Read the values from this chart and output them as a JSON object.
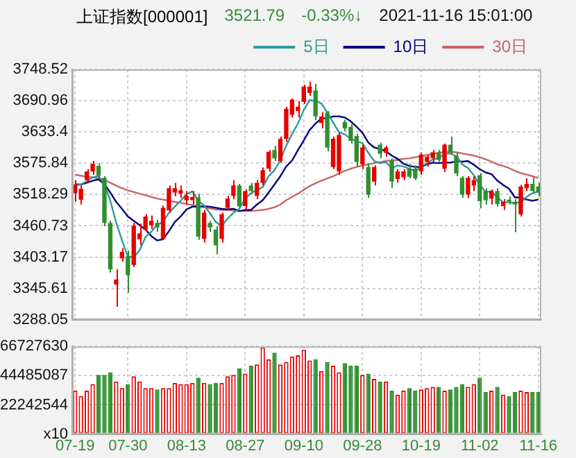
{
  "chart_data": [
    {
      "type": "candlestick",
      "title": "上证指数[000001]",
      "annotations": [
        "3521.79",
        "-0.33%↓",
        "2021-11-16 15:01:00"
      ],
      "categories": [
        null,
        null,
        null,
        null,
        null,
        null,
        null,
        null,
        null,
        null,
        null,
        null,
        null,
        null,
        null,
        null,
        null,
        null,
        null,
        null,
        null,
        null,
        null,
        null,
        null,
        null,
        null,
        null,
        null,
        null,
        null,
        null,
        null,
        null,
        null,
        null,
        null,
        null,
        null,
        null,
        null,
        null,
        null,
        null,
        null,
        null,
        null,
        null,
        null,
        null,
        null,
        null,
        null,
        null,
        null,
        null,
        null,
        null,
        null,
        null,
        null,
        null,
        null,
        null,
        null,
        null,
        null,
        null,
        null,
        null,
        null,
        null,
        null,
        null,
        null,
        null,
        null,
        null,
        null,
        null
      ],
      "ohlc": [
        [
          3521,
          3545,
          3505,
          3537
        ],
        [
          3509,
          3535,
          3500,
          3529
        ],
        [
          3545,
          3565,
          3540,
          3561
        ],
        [
          3561,
          3580,
          3555,
          3575
        ],
        [
          3571,
          3576,
          3548,
          3553
        ],
        [
          3549,
          3552,
          3460,
          3466
        ],
        [
          3466,
          3470,
          3375,
          3381
        ],
        [
          3353,
          3381,
          3312,
          3362
        ],
        [
          3401,
          3420,
          3395,
          3413
        ],
        [
          3405,
          3415,
          3338,
          3370
        ],
        [
          3389,
          3466,
          3385,
          3461
        ],
        [
          3436,
          3465,
          3425,
          3447
        ],
        [
          3454,
          3482,
          3450,
          3478
        ],
        [
          3462,
          3480,
          3455,
          3470
        ],
        [
          3466,
          3472,
          3450,
          3458
        ],
        [
          3437,
          3498,
          3435,
          3494
        ],
        [
          3489,
          3535,
          3485,
          3530
        ],
        [
          3522,
          3540,
          3515,
          3530
        ],
        [
          3520,
          3535,
          3512,
          3526
        ],
        [
          3508,
          3525,
          3500,
          3516
        ],
        [
          3508,
          3525,
          3500,
          3514
        ],
        [
          3513,
          3520,
          3435,
          3441
        ],
        [
          3437,
          3490,
          3430,
          3485
        ],
        [
          3466,
          3470,
          3450,
          3458
        ],
        [
          3454,
          3460,
          3408,
          3425
        ],
        [
          3437,
          3485,
          3430,
          3482
        ],
        [
          3494,
          3516,
          3490,
          3511
        ],
        [
          3516,
          3545,
          3510,
          3535
        ],
        [
          3535,
          3538,
          3495,
          3497
        ],
        [
          3497,
          3528,
          3490,
          3525
        ],
        [
          3535,
          3540,
          3520,
          3525
        ],
        [
          3516,
          3545,
          3510,
          3540
        ],
        [
          3540,
          3568,
          3535,
          3563
        ],
        [
          3566,
          3600,
          3560,
          3597
        ],
        [
          3600,
          3608,
          3580,
          3585
        ],
        [
          3580,
          3625,
          3577,
          3621
        ],
        [
          3621,
          3680,
          3615,
          3676
        ],
        [
          3665,
          3695,
          3660,
          3693
        ],
        [
          3672,
          3690,
          3660,
          3680
        ],
        [
          3689,
          3720,
          3685,
          3717
        ],
        [
          3705,
          3726,
          3700,
          3717
        ],
        [
          3710,
          3722,
          3655,
          3662
        ],
        [
          3650,
          3670,
          3640,
          3662
        ],
        [
          3669,
          3672,
          3598,
          3605
        ],
        [
          3569,
          3625,
          3565,
          3621
        ],
        [
          3561,
          3632,
          3555,
          3628
        ],
        [
          3652,
          3656,
          3635,
          3640
        ],
        [
          3643,
          3648,
          3612,
          3617
        ],
        [
          3626,
          3630,
          3570,
          3578
        ],
        [
          3574,
          3610,
          3565,
          3605
        ],
        [
          3569,
          3575,
          3512,
          3518
        ],
        [
          3542,
          3572,
          3535,
          3569
        ],
        [
          3610,
          3614,
          3585,
          3593
        ],
        [
          3595,
          3608,
          3588,
          3605
        ],
        [
          3581,
          3585,
          3530,
          3542
        ],
        [
          3547,
          3565,
          3540,
          3561
        ],
        [
          3550,
          3565,
          3545,
          3561
        ],
        [
          3566,
          3575,
          3548,
          3551
        ],
        [
          3566,
          3572,
          3545,
          3548
        ],
        [
          3561,
          3596,
          3555,
          3592
        ],
        [
          3578,
          3592,
          3570,
          3588
        ],
        [
          3585,
          3600,
          3578,
          3596
        ],
        [
          3596,
          3600,
          3578,
          3582
        ],
        [
          3566,
          3612,
          3560,
          3610
        ],
        [
          3610,
          3625,
          3592,
          3595
        ],
        [
          3590,
          3594,
          3552,
          3557
        ],
        [
          3549,
          3552,
          3512,
          3518
        ],
        [
          3518,
          3552,
          3512,
          3549
        ],
        [
          3535,
          3552,
          3525,
          3545
        ],
        [
          3554,
          3558,
          3493,
          3506
        ],
        [
          3525,
          3530,
          3500,
          3508
        ],
        [
          3511,
          3528,
          3500,
          3525
        ],
        [
          3525,
          3530,
          3496,
          3501
        ],
        [
          3497,
          3510,
          3490,
          3505
        ],
        [
          3509,
          3515,
          3500,
          3505
        ],
        [
          3505,
          3510,
          3449,
          3500
        ],
        [
          3482,
          3536,
          3478,
          3533
        ],
        [
          3530,
          3548,
          3525,
          3538
        ],
        [
          3538,
          3550,
          3520,
          3525
        ],
        [
          3533,
          3540,
          3515,
          3522
        ]
      ],
      "colors": [
        "#e60000",
        "#e60000",
        "#e60000",
        "#e60000",
        "#2f8f2f",
        "#2f8f2f",
        "#2f8f2f",
        "#e60000",
        "#e60000",
        "#2f8f2f",
        "#e60000",
        "#e60000",
        "#e60000",
        "#e60000",
        "#2f8f2f",
        "#e60000",
        "#e60000",
        "#e60000",
        "#e60000",
        "#e60000",
        "#e60000",
        "#2f8f2f",
        "#e60000",
        "#2f8f2f",
        "#2f8f2f",
        "#e60000",
        "#e60000",
        "#e60000",
        "#2f8f2f",
        "#e60000",
        "#2f8f2f",
        "#e60000",
        "#e60000",
        "#e60000",
        "#2f8f2f",
        "#e60000",
        "#e60000",
        "#e60000",
        "#e60000",
        "#e60000",
        "#e60000",
        "#2f8f2f",
        "#e60000",
        "#2f8f2f",
        "#e60000",
        "#e60000",
        "#2f8f2f",
        "#2f8f2f",
        "#2f8f2f",
        "#e60000",
        "#2f8f2f",
        "#e60000",
        "#2f8f2f",
        "#e60000",
        "#2f8f2f",
        "#e60000",
        "#e60000",
        "#2f8f2f",
        "#2f8f2f",
        "#e60000",
        "#e60000",
        "#e60000",
        "#2f8f2f",
        "#e60000",
        "#2f8f2f",
        "#2f8f2f",
        "#2f8f2f",
        "#e60000",
        "#e60000",
        "#2f8f2f",
        "#2f8f2f",
        "#e60000",
        "#2f8f2f",
        "#e60000",
        "#2f8f2f",
        "#2f8f2f",
        "#e60000",
        "#e60000",
        "#2f8f2f",
        "#2f8f2f"
      ],
      "series": [
        {
          "name": "5日",
          "type": "line",
          "color": "#2e9a9a",
          "values": [
            3538,
            3537,
            3543,
            3550,
            3552,
            3538,
            3507,
            3467,
            3434,
            3404,
            3403,
            3416,
            3440,
            3450,
            3463,
            3468,
            3485,
            3496,
            3507,
            3519,
            3524,
            3507,
            3498,
            3484,
            3468,
            3460,
            3474,
            3485,
            3492,
            3511,
            3521,
            3527,
            3532,
            3552,
            3563,
            3582,
            3608,
            3630,
            3649,
            3674,
            3692,
            3690,
            3686,
            3669,
            3651,
            3633,
            3629,
            3621,
            3616,
            3613,
            3595,
            3580,
            3576,
            3578,
            3567,
            3572,
            3570,
            3566,
            3561,
            3570,
            3576,
            3583,
            3585,
            3593,
            3594,
            3589,
            3574,
            3567,
            3554,
            3536,
            3523,
            3524,
            3513,
            3504,
            3504,
            3503,
            3504,
            3514,
            3521,
            3524
          ]
        },
        {
          "name": "10日",
          "type": "line",
          "color": "#000080",
          "values": [
            3536,
            3537,
            3540,
            3544,
            3546,
            3538,
            3522,
            3505,
            3492,
            3478,
            3470,
            3462,
            3454,
            3442,
            3434,
            3436,
            3451,
            3468,
            3478,
            3491,
            3496,
            3496,
            3497,
            3496,
            3494,
            3492,
            3491,
            3492,
            3488,
            3490,
            3490,
            3500,
            3508,
            3522,
            3537,
            3552,
            3570,
            3581,
            3600,
            3618,
            3637,
            3649,
            3658,
            3659,
            3662,
            3662,
            3660,
            3653,
            3643,
            3632,
            3614,
            3605,
            3602,
            3598,
            3590,
            3584,
            3575,
            3571,
            3569,
            3569,
            3574,
            3577,
            3576,
            3577,
            3577,
            3580,
            3579,
            3580,
            3573,
            3565,
            3559,
            3556,
            3544,
            3536,
            3529,
            3513,
            3513,
            3509,
            3507,
            3509
          ]
        },
        {
          "name": "30日",
          "type": "line",
          "color": "#c86464",
          "values": [
            3555,
            3553,
            3551,
            3550,
            3548,
            3545,
            3540,
            3535,
            3530,
            3526,
            3523,
            3520,
            3517,
            3514,
            3511,
            3509,
            3507,
            3505,
            3503,
            3501,
            3499,
            3497,
            3495,
            3493,
            3491,
            3490,
            3490,
            3489,
            3488,
            3488,
            3488,
            3489,
            3490,
            3492,
            3495,
            3500,
            3508,
            3514,
            3520,
            3527,
            3534,
            3539,
            3544,
            3548,
            3552,
            3557,
            3562,
            3566,
            3569,
            3572,
            3574,
            3576,
            3578,
            3580,
            3581,
            3582,
            3584,
            3585,
            3587,
            3589,
            3591,
            3593,
            3595,
            3597,
            3597,
            3596,
            3594,
            3592,
            3590,
            3587,
            3583,
            3579,
            3574,
            3571,
            3567,
            3562,
            3558,
            3555,
            3552,
            3549
          ]
        }
      ],
      "ylim": [
        3288.05,
        3748.52
      ],
      "yticks": [
        3288.05,
        3345.61,
        3403.17,
        3460.73,
        3518.29,
        3575.84,
        3633.4,
        3690.96,
        3748.52
      ],
      "grid": true,
      "legend": "top right",
      "tick_labels": "y",
      "marker": "none"
    },
    {
      "type": "bar",
      "categories": [
        "07-19",
        null,
        null,
        null,
        null,
        null,
        null,
        null,
        null,
        "07-30",
        null,
        null,
        null,
        null,
        null,
        null,
        null,
        null,
        null,
        "08-13",
        null,
        null,
        null,
        null,
        null,
        null,
        null,
        null,
        null,
        "08-27",
        null,
        null,
        null,
        null,
        null,
        null,
        null,
        null,
        null,
        "09-10",
        null,
        null,
        null,
        null,
        null,
        null,
        null,
        null,
        null,
        "09-28",
        null,
        null,
        null,
        null,
        null,
        null,
        null,
        null,
        null,
        "10-19",
        null,
        null,
        null,
        null,
        null,
        null,
        null,
        null,
        null,
        "11-02",
        null,
        null,
        null,
        null,
        null,
        null,
        null,
        null,
        null,
        "11-16"
      ],
      "values": [
        33000000,
        29000000,
        33000000,
        38000000,
        45000000,
        45000000,
        47000000,
        40000000,
        35000000,
        38000000,
        44000000,
        40000000,
        35000000,
        35000000,
        34000000,
        35000000,
        35000000,
        39000000,
        38000000,
        38000000,
        39000000,
        43000000,
        39000000,
        38000000,
        39000000,
        39000000,
        44000000,
        45000000,
        50000000,
        46000000,
        52000000,
        53000000,
        66000000,
        57000000,
        62000000,
        53000000,
        55000000,
        59000000,
        60000000,
        64000000,
        56000000,
        57000000,
        48000000,
        55000000,
        52000000,
        47000000,
        54000000,
        52000000,
        52000000,
        45000000,
        46000000,
        42000000,
        40000000,
        40000000,
        33000000,
        30000000,
        33000000,
        35000000,
        33000000,
        34000000,
        35000000,
        36000000,
        36000000,
        33000000,
        34000000,
        36000000,
        38000000,
        36000000,
        38000000,
        43000000,
        32000000,
        33000000,
        36000000,
        30000000,
        29000000,
        32000000,
        33000000,
        32000000,
        32000000,
        32000000
      ],
      "colors": [
        "#e60000",
        "#e60000",
        "#e60000",
        "#e60000",
        "#2f8f2f",
        "#2f8f2f",
        "#2f8f2f",
        "#e60000",
        "#e60000",
        "#2f8f2f",
        "#e60000",
        "#e60000",
        "#e60000",
        "#e60000",
        "#2f8f2f",
        "#e60000",
        "#e60000",
        "#e60000",
        "#e60000",
        "#e60000",
        "#e60000",
        "#2f8f2f",
        "#e60000",
        "#2f8f2f",
        "#2f8f2f",
        "#e60000",
        "#e60000",
        "#e60000",
        "#2f8f2f",
        "#e60000",
        "#2f8f2f",
        "#e60000",
        "#e60000",
        "#e60000",
        "#2f8f2f",
        "#e60000",
        "#e60000",
        "#e60000",
        "#e60000",
        "#e60000",
        "#e60000",
        "#2f8f2f",
        "#e60000",
        "#2f8f2f",
        "#e60000",
        "#e60000",
        "#2f8f2f",
        "#2f8f2f",
        "#2f8f2f",
        "#e60000",
        "#2f8f2f",
        "#e60000",
        "#2f8f2f",
        "#e60000",
        "#2f8f2f",
        "#e60000",
        "#e60000",
        "#2f8f2f",
        "#2f8f2f",
        "#e60000",
        "#e60000",
        "#e60000",
        "#2f8f2f",
        "#e60000",
        "#2f8f2f",
        "#2f8f2f",
        "#2f8f2f",
        "#e60000",
        "#e60000",
        "#2f8f2f",
        "#2f8f2f",
        "#e60000",
        "#2f8f2f",
        "#e60000",
        "#2f8f2f",
        "#2f8f2f",
        "#e60000",
        "#e60000",
        "#2f8f2f",
        "#2f8f2f"
      ],
      "ylim": [
        0,
        66727630
      ],
      "yticks": [
        {
          "value": 0,
          "label": "x10"
        },
        22242544,
        44485087,
        66727630
      ],
      "grid": true
    }
  ]
}
